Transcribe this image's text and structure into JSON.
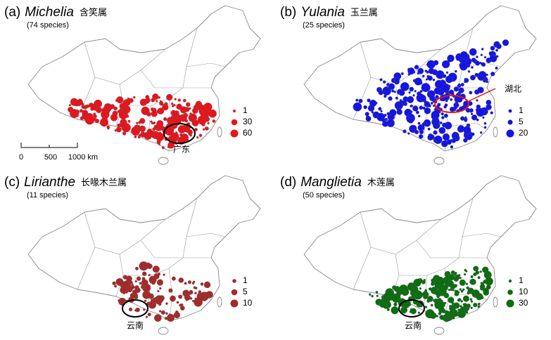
{
  "panels": [
    {
      "label": "(a)",
      "genus": "Michelia",
      "chinese": "含笑属",
      "species": "(74 species)",
      "legend": [
        1,
        30,
        60
      ],
      "annotation": "广东",
      "color": "#e8141b",
      "ellipse_color": "#000000"
    },
    {
      "label": "(b)",
      "genus": "Yulania",
      "chinese": "玉兰属",
      "species": "(25 species)",
      "legend": [
        1,
        5,
        20
      ],
      "annotation": "湖北",
      "color": "#1414e6",
      "ellipse_color": "#e8141b"
    },
    {
      "label": "(c)",
      "genus": "Lirianthe",
      "chinese": "长喙木兰属",
      "species": "(11 species)",
      "legend": [
        1,
        5,
        10
      ],
      "annotation": "云南",
      "color": "#a52a2a",
      "ellipse_color": "#000000"
    },
    {
      "label": "(d)",
      "genus": "Manglietia",
      "chinese": "木莲属",
      "species": "(50 species)",
      "legend": [
        1,
        10,
        30
      ],
      "annotation": "云南",
      "color": "#0b6e10",
      "ellipse_color": "#000000"
    }
  ],
  "scale_bar": {
    "labels": [
      "0",
      "500",
      "1000 km"
    ]
  }
}
